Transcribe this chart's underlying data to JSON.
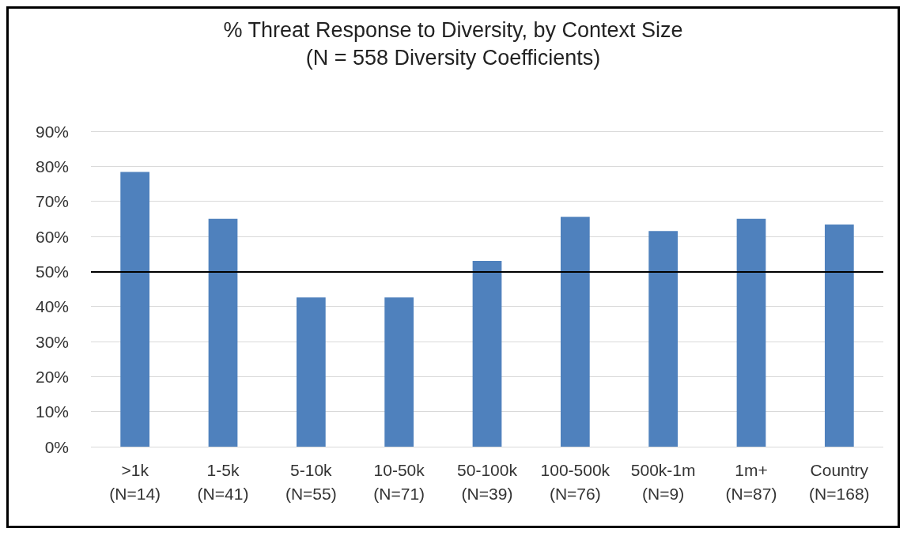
{
  "chart_data": {
    "type": "bar",
    "title": "% Threat Response to Diversity, by Context Size",
    "subtitle": "(N = 558 Diversity Coefficients)",
    "categories": [
      ">1k\n(N=14)",
      "1-5k\n(N=41)",
      "5-10k\n(N=55)",
      "10-50k\n(N=71)",
      "50-100k\n(N=39)",
      "100-500k\n(N=76)",
      "500k-1m\n(N=9)",
      "1m+\n(N=87)",
      "Country\n(N=168)"
    ],
    "values": [
      78.4,
      65,
      42.6,
      42.6,
      53,
      65.6,
      61.5,
      65,
      63.4
    ],
    "color": "#4f81bd",
    "ylim": [
      0,
      90
    ],
    "yticks": [
      {
        "value": 0,
        "label": "0%"
      },
      {
        "value": 10,
        "label": "10%"
      },
      {
        "value": 20,
        "label": "20%"
      },
      {
        "value": 30,
        "label": "30%"
      },
      {
        "value": 40,
        "label": "40%"
      },
      {
        "value": 50,
        "label": "50%"
      },
      {
        "value": 60,
        "label": "60%"
      },
      {
        "value": 70,
        "label": "70%"
      },
      {
        "value": 80,
        "label": "80%"
      },
      {
        "value": 90,
        "label": "90%"
      }
    ],
    "grid": "y",
    "ref_lines": [
      {
        "axis": "y",
        "value": 50,
        "color": "#000000"
      }
    ]
  }
}
